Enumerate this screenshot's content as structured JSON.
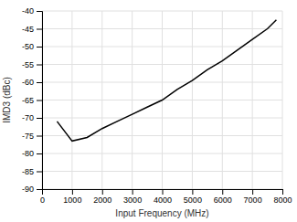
{
  "chart_data": {
    "type": "line",
    "x": [
      500,
      1000,
      1500,
      2000,
      2500,
      3000,
      3500,
      4000,
      4500,
      5000,
      5500,
      6000,
      6500,
      7000,
      7500,
      7800
    ],
    "values": [
      -71,
      -76.5,
      -75.5,
      -73.0,
      -71.0,
      -69.0,
      -67.0,
      -65.0,
      -62.0,
      -59.5,
      -56.5,
      -54.0,
      -51.0,
      -48.0,
      -45.0,
      -42.5
    ],
    "xlabel": "Input Frequency (MHz)",
    "ylabel": "IMD3 (dBc)",
    "xlim": [
      0,
      8000
    ],
    "ylim": [
      -90,
      -40
    ],
    "xticks": [
      0,
      1000,
      2000,
      3000,
      4000,
      5000,
      6000,
      7000,
      8000
    ],
    "yticks": [
      -90,
      -85,
      -80,
      -75,
      -70,
      -65,
      -60,
      -55,
      -50,
      -45,
      -40
    ],
    "grid": true,
    "color": "#000000",
    "line_style": "solid"
  }
}
